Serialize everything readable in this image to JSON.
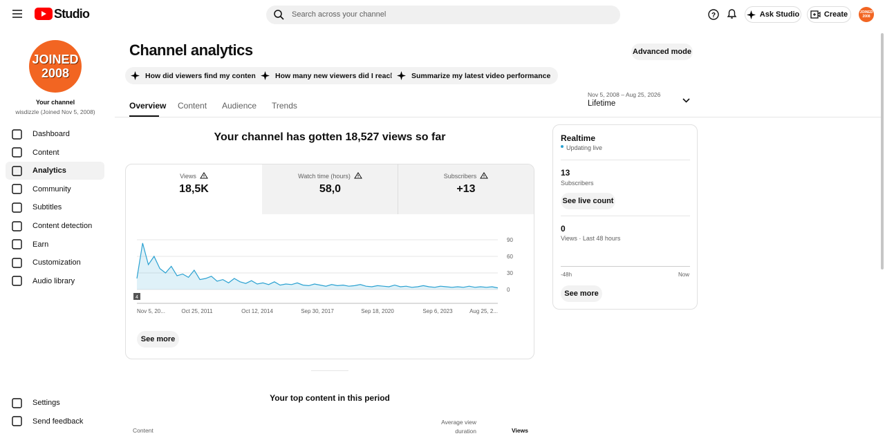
{
  "header": {
    "logo": "Studio",
    "search_placeholder": "Search across your channel",
    "ask_studio": "Ask Studio",
    "create": "Create",
    "avatar_text": "JOINED 2008"
  },
  "sidebar": {
    "avatar_line1": "JOINED",
    "avatar_line2": "2008",
    "channel_label": "Your channel",
    "channel_sub": "wisdizzle (Joined Nov 5, 2008)",
    "nav": [
      "Dashboard",
      "Content",
      "Analytics",
      "Community",
      "Subtitles",
      "Content detection",
      "Earn",
      "Customization",
      "Audio library"
    ],
    "bottom": [
      "Settings",
      "Send feedback"
    ]
  },
  "page": {
    "title": "Channel analytics",
    "advanced_mode": "Advanced mode",
    "prompts": [
      "How did viewers find my content?",
      "How many new viewers did I reach?",
      "Summarize my latest video performance"
    ],
    "tabs": [
      "Overview",
      "Content",
      "Audience",
      "Trends"
    ],
    "date_range": "Nov 5, 2008 – Aug 25, 2026",
    "period": "Lifetime",
    "headline": "Your channel has gotten 18,527 views so far",
    "metrics": [
      {
        "label": "Views",
        "value": "18,5K"
      },
      {
        "label": "Watch time (hours)",
        "value": "58,0"
      },
      {
        "label": "Subscribers",
        "value": "+13"
      }
    ],
    "see_more": "See more",
    "top_content_title": "Your top content in this period",
    "table_headers": [
      "Content",
      "Average view duration",
      "Views"
    ]
  },
  "chart_data": {
    "type": "line",
    "annotation": "4",
    "xlim": [
      0,
      63
    ],
    "xticks": [
      {
        "value": 0,
        "label": "Nov 5, 20..."
      },
      {
        "value": 10.5,
        "label": "Oct 25, 2011"
      },
      {
        "value": 21,
        "label": "Oct 12, 2014"
      },
      {
        "value": 31.5,
        "label": "Sep 30, 2017"
      },
      {
        "value": 42,
        "label": "Sep 18, 2020"
      },
      {
        "value": 52.5,
        "label": "Sep 6, 2023"
      },
      {
        "value": 63,
        "label": "Aug 25, 2..."
      }
    ],
    "ylim": [
      0,
      90
    ],
    "yticks": [
      0,
      30,
      60,
      90
    ],
    "grid": true,
    "series": [
      {
        "color": "#2aa1d1",
        "values": [
          20,
          84,
          45,
          60,
          38,
          30,
          42,
          25,
          28,
          22,
          35,
          18,
          20,
          24,
          15,
          18,
          12,
          20,
          14,
          11,
          16,
          10,
          12,
          9,
          14,
          8,
          10,
          9,
          12,
          8,
          7,
          10,
          8,
          6,
          9,
          7,
          8,
          6,
          7,
          9,
          6,
          5,
          7,
          6,
          5,
          8,
          5,
          6,
          4,
          5,
          7,
          5,
          4,
          6,
          5,
          4,
          5,
          4,
          6,
          4,
          5,
          4,
          5,
          3
        ]
      }
    ]
  },
  "realtime": {
    "title": "Realtime",
    "status": "Updating live",
    "subs_value": "13",
    "subs_label": "Subscribers",
    "live_button": "See live count",
    "views_value": "0",
    "views_label": "Views · Last 48 hours",
    "axis_start": "-48h",
    "axis_end": "Now",
    "see_more": "See more"
  }
}
